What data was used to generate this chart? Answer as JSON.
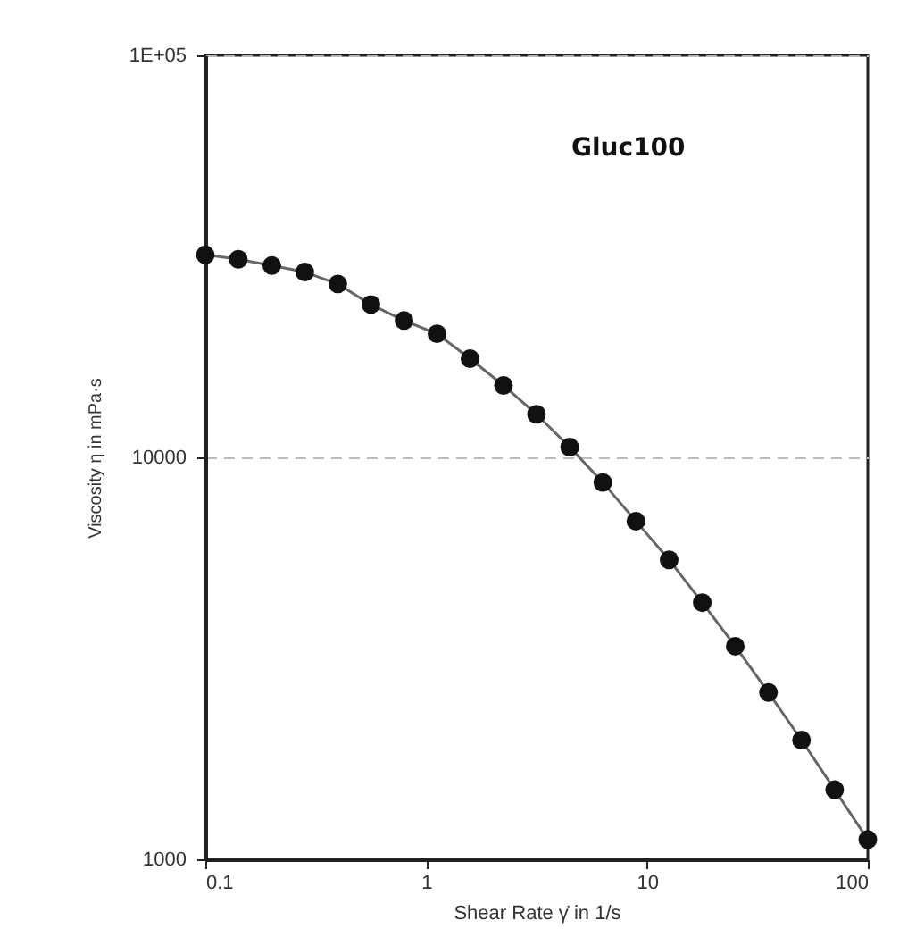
{
  "chart_data": {
    "type": "line",
    "xlabel": "Shear Rate γ̇ in 1/s",
    "ylabel": "Viscosity η in mPa·s",
    "annotations": [
      "Gluc100"
    ],
    "x": [
      0.1,
      0.141,
      0.2,
      0.282,
      0.398,
      0.562,
      0.794,
      1.12,
      1.58,
      2.24,
      3.16,
      4.47,
      6.31,
      8.91,
      12.6,
      17.8,
      25.1,
      35.5,
      50.1,
      70.8,
      100
    ],
    "series": [
      {
        "color": "#111111",
        "values": [
          31900,
          31100,
          30000,
          28900,
          27000,
          24000,
          21900,
          20300,
          17600,
          15100,
          12800,
          10600,
          8660,
          6940,
          5560,
          4350,
          3390,
          2600,
          1980,
          1490,
          1120
        ]
      }
    ],
    "log": "xy",
    "xlim": [
      0.1,
      100
    ],
    "ylim": [
      1000,
      100000
    ],
    "xticks": [
      0.1,
      1,
      10,
      100
    ],
    "yticks": [
      1000,
      10000,
      {
        "value": 100000,
        "label": "1E+05"
      }
    ],
    "grid": "y",
    "marker": "circle",
    "line_style": "solid"
  }
}
